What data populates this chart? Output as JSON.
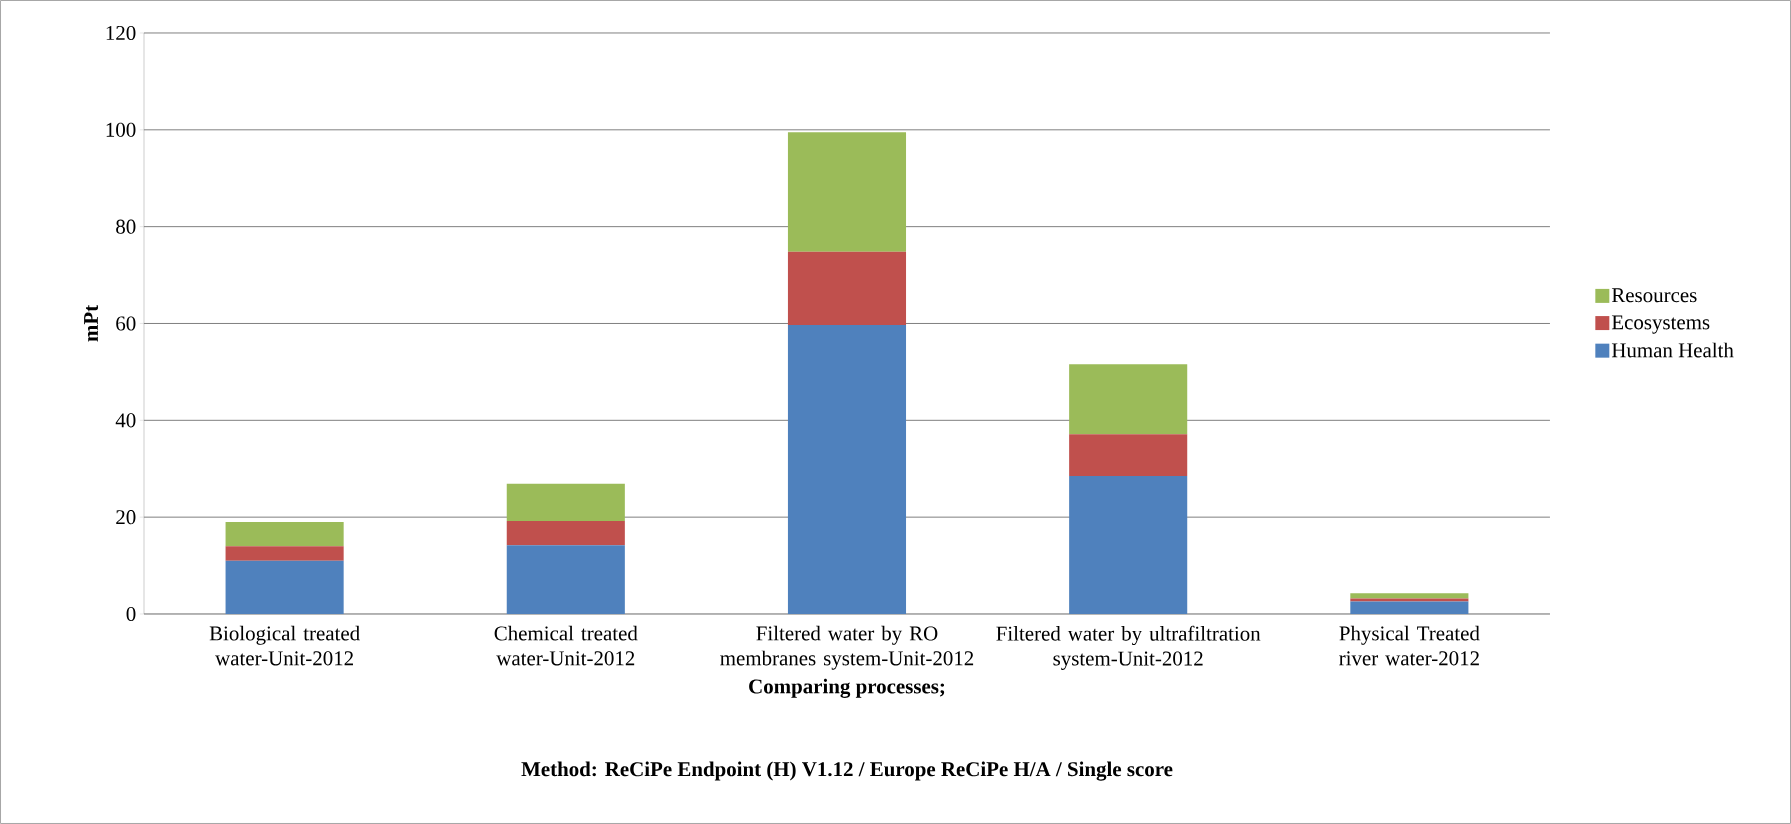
{
  "chart_data": {
    "type": "bar",
    "stacked": true,
    "categories": [
      "Biological treated water-Unit-2012",
      "Chemical treated water-Unit-2012",
      "Filtered water by RO membranes system-Unit-2012",
      "Filtered water by ultrafiltration system-Unit-2012",
      "Physical Treated river water-2012"
    ],
    "series": [
      {
        "name": "Human Health",
        "color": "#4f81bd",
        "values": [
          11.0,
          14.2,
          59.7,
          28.5,
          2.6
        ]
      },
      {
        "name": "Ecosystems",
        "color": "#c0504d",
        "values": [
          3.0,
          5.0,
          15.1,
          8.6,
          0.6
        ]
      },
      {
        "name": "Resources",
        "color": "#9bbb59",
        "values": [
          5.0,
          7.7,
          24.7,
          14.5,
          1.1
        ]
      }
    ],
    "ylabel": "mPt",
    "xlabel": "Comparing processes;",
    "annotations": [
      "Method: ReCiPe Endpoint (H) V1.12 / Europe ReCiPe H/A / Single score"
    ],
    "ylim": [
      0,
      120
    ],
    "yticks": [
      0,
      20,
      40,
      60,
      80,
      100,
      120
    ],
    "grid": "y",
    "legend": "right"
  }
}
